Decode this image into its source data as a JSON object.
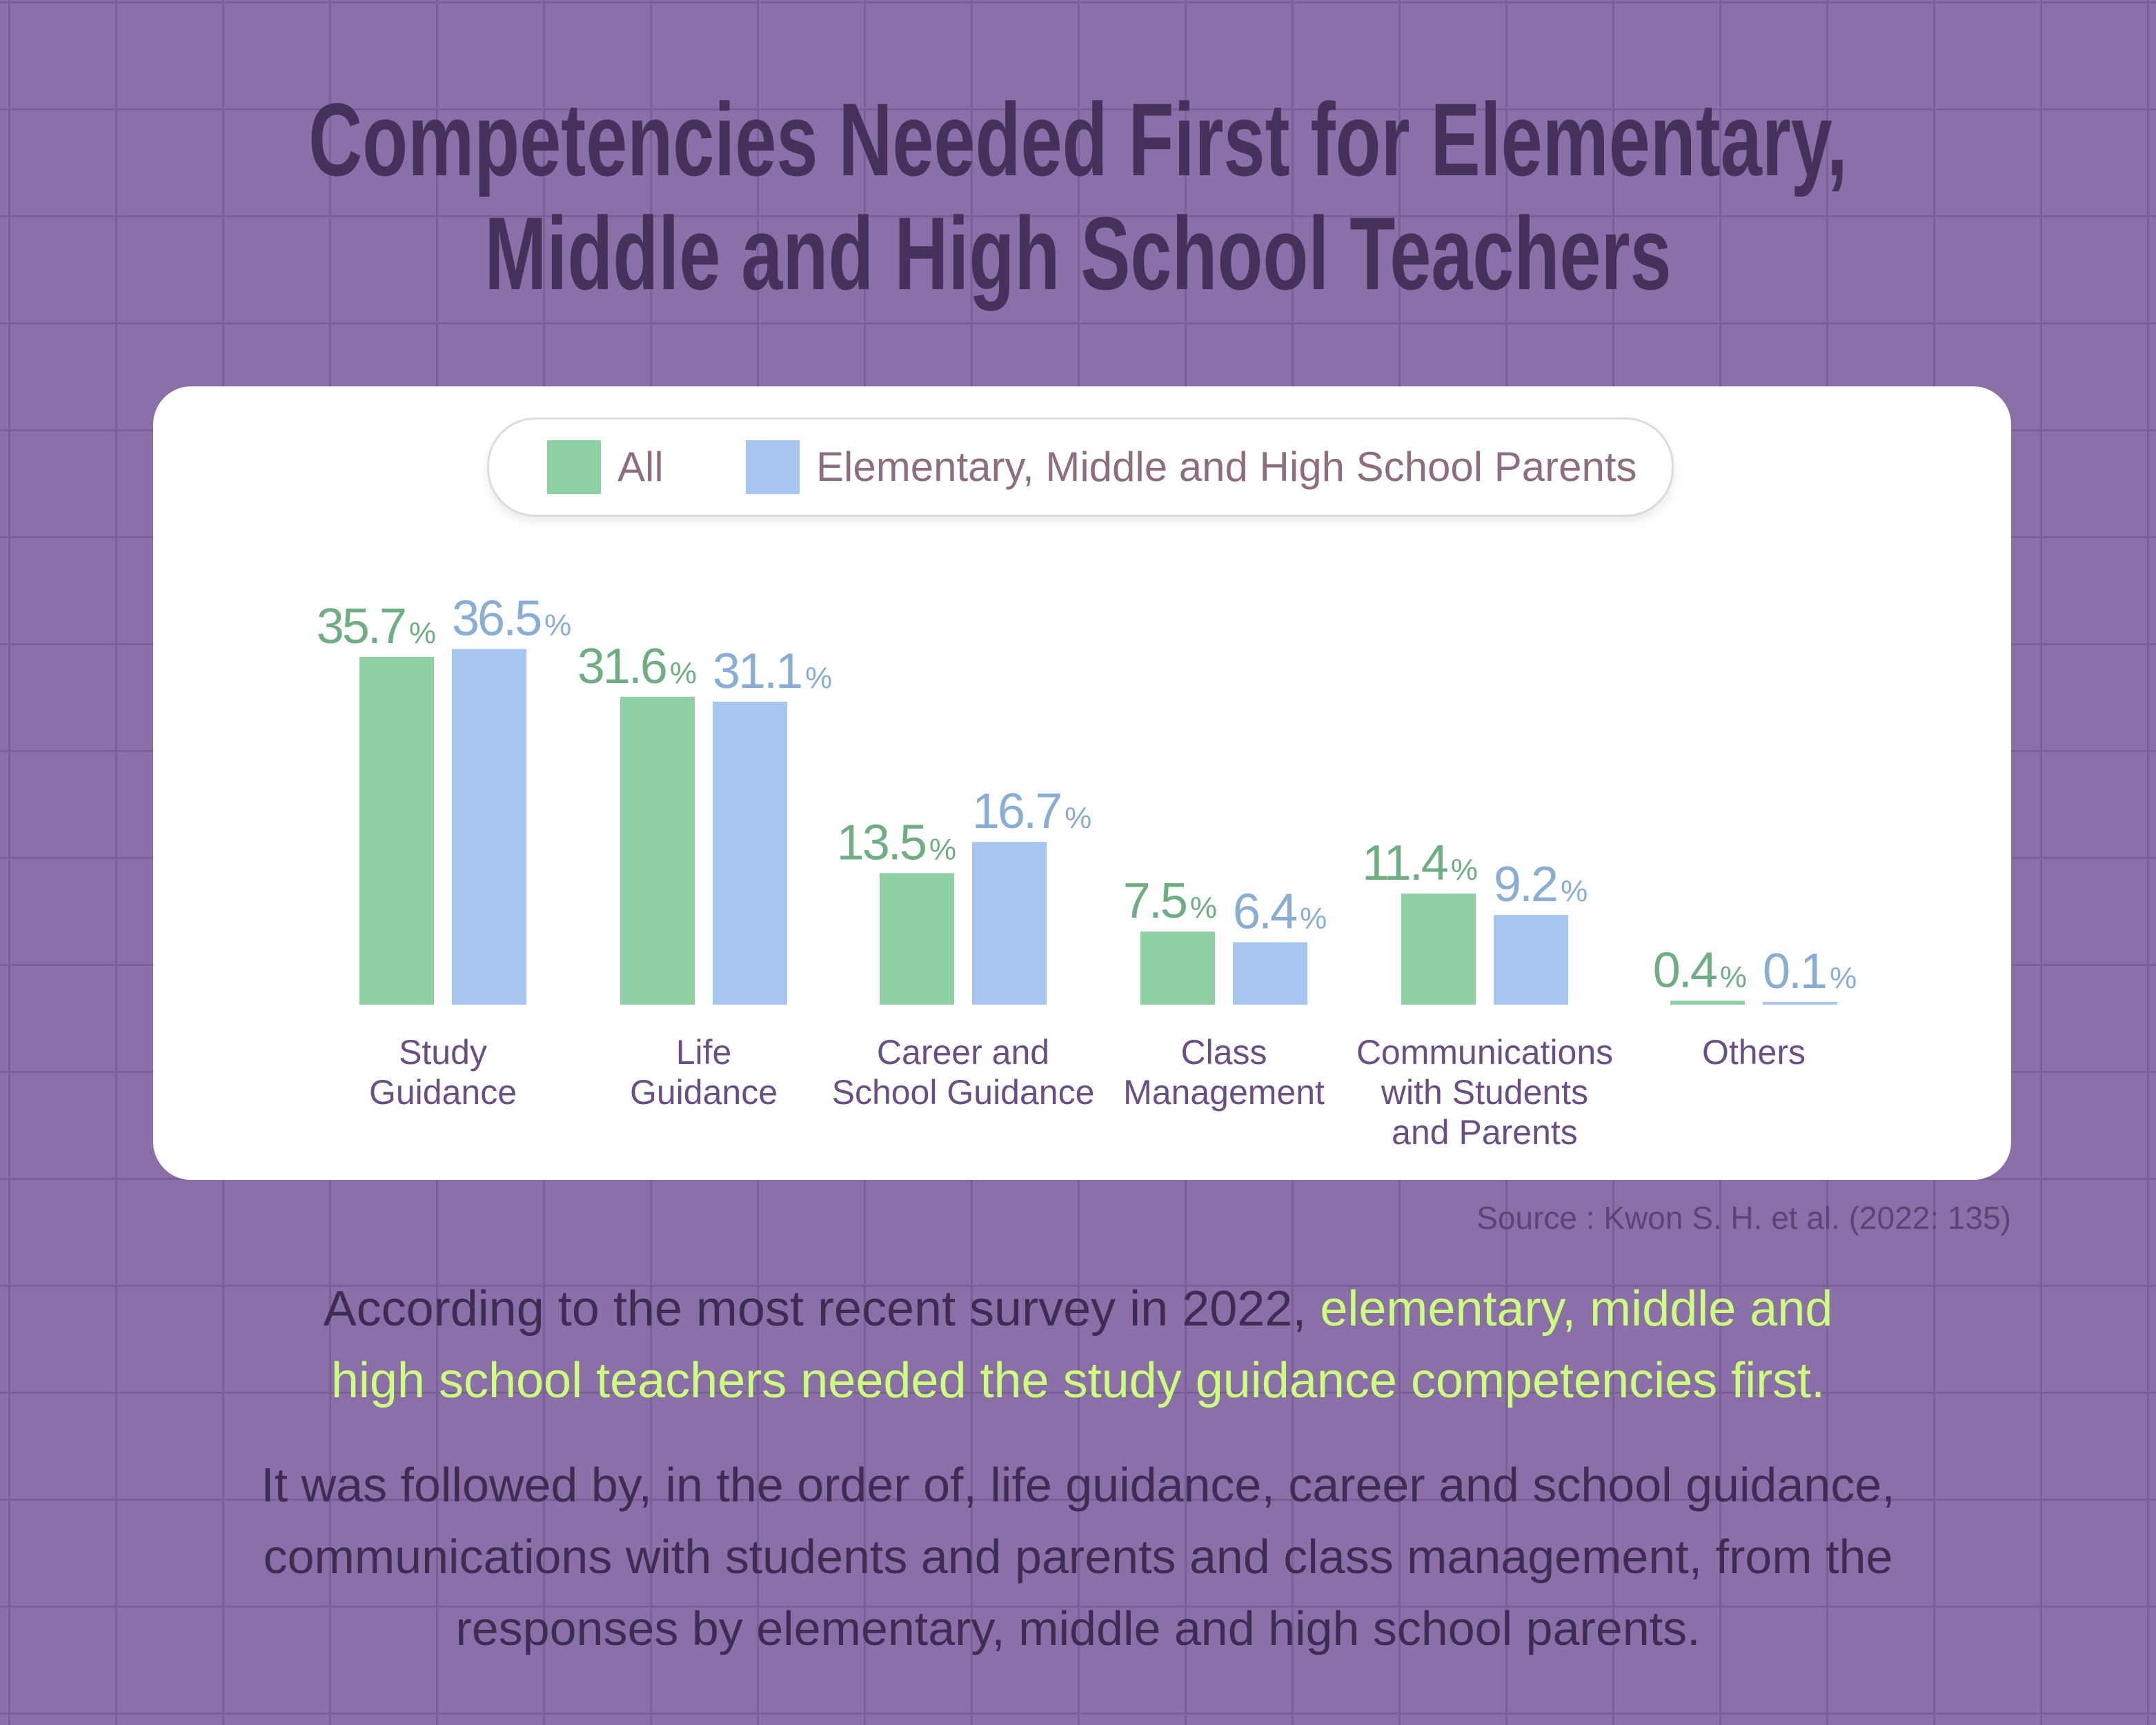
{
  "title_line1": "Competencies Needed First for Elementary,",
  "title_line2": "Middle and High School Teachers",
  "chart_data": {
    "type": "bar",
    "title": "Competencies Needed First for Elementary, Middle and High School Teachers",
    "categories": [
      [
        "Study",
        "Guidance"
      ],
      [
        "Life",
        "Guidance"
      ],
      [
        "Career and",
        "School Guidance"
      ],
      [
        "Class",
        "Management"
      ],
      [
        "Communications",
        "with Students",
        "and Parents"
      ],
      [
        "Others"
      ]
    ],
    "series": [
      {
        "name": "All",
        "color": "#8dd0a3",
        "label_color": "#6fae82",
        "values": [
          35.7,
          31.6,
          13.5,
          7.5,
          11.4,
          0.4
        ]
      },
      {
        "name": "Elementary, Middle and High School Parents",
        "color": "#a6c6f0",
        "label_color": "#88aed6",
        "values": [
          36.5,
          31.1,
          16.7,
          6.4,
          9.2,
          0.1
        ]
      }
    ],
    "unit": "%",
    "xlabel": "",
    "ylabel": "",
    "ylim": [
      0,
      40
    ],
    "grid": false,
    "legend": "top-center"
  },
  "source": "Source : Kwon S. H. et al. (2022: 135)",
  "summary_plain": "According to the most recent survey in 2022, ",
  "summary_highlight_1": "elementary, middle and",
  "summary_highlight_2": "high school teachers needed the study guidance competencies first.",
  "detail_line1": "It was followed by, in the order of, life guidance, career and school guidance,",
  "detail_line2": "communications with students and parents and class management, from the",
  "detail_line3": "responses by elementary, middle and high school parents.",
  "colors": {
    "background": "#8a6fa8",
    "title": "#45325a",
    "highlight": "#ccff7a"
  }
}
